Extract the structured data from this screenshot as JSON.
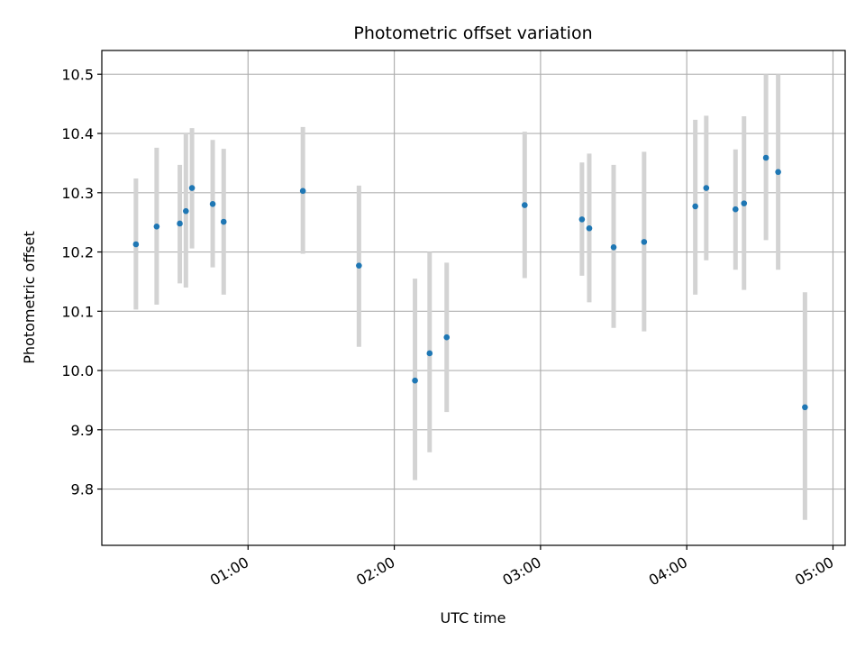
{
  "chart_data": {
    "type": "scatter",
    "title": "Photometric offset variation",
    "xlabel": "UTC time",
    "ylabel": "Photometric offset",
    "x_unit": "minutes UTC",
    "xlim": [
      0,
      305
    ],
    "ylim": [
      9.705,
      10.54
    ],
    "x_ticks": [
      {
        "value": 60,
        "label": "01:00"
      },
      {
        "value": 120,
        "label": "02:00"
      },
      {
        "value": 180,
        "label": "03:00"
      },
      {
        "value": 240,
        "label": "04:00"
      },
      {
        "value": 300,
        "label": "05:00"
      }
    ],
    "y_ticks": [
      {
        "value": 9.8,
        "label": "9.8"
      },
      {
        "value": 9.9,
        "label": "9.9"
      },
      {
        "value": 10.0,
        "label": "10.0"
      },
      {
        "value": 10.1,
        "label": "10.1"
      },
      {
        "value": 10.2,
        "label": "10.2"
      },
      {
        "value": 10.3,
        "label": "10.3"
      },
      {
        "value": 10.4,
        "label": "10.4"
      },
      {
        "value": 10.5,
        "label": "10.5"
      }
    ],
    "grid": true,
    "colors": {
      "point": "#1f77b4",
      "errorbar": "#d3d3d3",
      "grid": "#b0b0b0"
    },
    "points": [
      {
        "t": 14,
        "y": 10.213,
        "lo": 10.103,
        "hi": 10.324
      },
      {
        "t": 22.5,
        "y": 10.243,
        "lo": 10.111,
        "hi": 10.376
      },
      {
        "t": 32,
        "y": 10.248,
        "lo": 10.147,
        "hi": 10.347
      },
      {
        "t": 34.5,
        "y": 10.269,
        "lo": 10.14,
        "hi": 10.4
      },
      {
        "t": 37,
        "y": 10.308,
        "lo": 10.206,
        "hi": 10.409
      },
      {
        "t": 45.5,
        "y": 10.281,
        "lo": 10.174,
        "hi": 10.389
      },
      {
        "t": 50,
        "y": 10.251,
        "lo": 10.128,
        "hi": 10.374
      },
      {
        "t": 82.5,
        "y": 10.303,
        "lo": 10.197,
        "hi": 10.411
      },
      {
        "t": 105.5,
        "y": 10.177,
        "lo": 10.04,
        "hi": 10.312
      },
      {
        "t": 128.5,
        "y": 9.983,
        "lo": 9.815,
        "hi": 10.155
      },
      {
        "t": 134.5,
        "y": 10.029,
        "lo": 9.862,
        "hi": 10.2
      },
      {
        "t": 141.5,
        "y": 10.056,
        "lo": 9.93,
        "hi": 10.182
      },
      {
        "t": 173.5,
        "y": 10.279,
        "lo": 10.156,
        "hi": 10.403
      },
      {
        "t": 197,
        "y": 10.255,
        "lo": 10.16,
        "hi": 10.351
      },
      {
        "t": 200,
        "y": 10.24,
        "lo": 10.115,
        "hi": 10.366
      },
      {
        "t": 210,
        "y": 10.208,
        "lo": 10.072,
        "hi": 10.347
      },
      {
        "t": 222.5,
        "y": 10.217,
        "lo": 10.066,
        "hi": 10.369
      },
      {
        "t": 243.5,
        "y": 10.277,
        "lo": 10.128,
        "hi": 10.423
      },
      {
        "t": 248,
        "y": 10.308,
        "lo": 10.186,
        "hi": 10.43
      },
      {
        "t": 260,
        "y": 10.272,
        "lo": 10.17,
        "hi": 10.373
      },
      {
        "t": 263.5,
        "y": 10.282,
        "lo": 10.136,
        "hi": 10.429
      },
      {
        "t": 272.5,
        "y": 10.359,
        "lo": 10.22,
        "hi": 10.5
      },
      {
        "t": 277.5,
        "y": 10.335,
        "lo": 10.17,
        "hi": 10.5
      },
      {
        "t": 288.5,
        "y": 9.938,
        "lo": 9.748,
        "hi": 10.132
      }
    ]
  }
}
